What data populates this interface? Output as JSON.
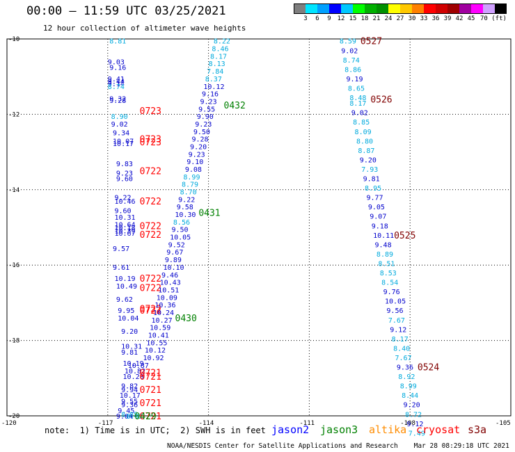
{
  "title": "00:00 – 11:59 UTC 03/25/2021",
  "subtitle": "12 hour collection of altimeter wave heights",
  "colorbar": {
    "colors": [
      "#7f7f7f",
      "#00e5ff",
      "#00a0ff",
      "#0000ff",
      "#00c8ff",
      "#00ff00",
      "#00b000",
      "#009000",
      "#ffff00",
      "#ffc800",
      "#ff8000",
      "#ff0000",
      "#d00000",
      "#a00000",
      "#a000a0",
      "#ff00ff",
      "#d0a0ff",
      "#000000"
    ],
    "labels": [
      "3",
      "6",
      "9",
      "12",
      "15",
      "18",
      "21",
      "24",
      "27",
      "30",
      "33",
      "36",
      "39",
      "42",
      "45",
      "70 (ft)"
    ],
    "unit": "(ft)"
  },
  "axes": {
    "lat_ticks": [
      "-10",
      "-12",
      "-14",
      "-16",
      "-18",
      "-20"
    ],
    "lon_ticks": [
      "-120",
      "-117",
      "-114",
      "-111",
      "-108",
      "-105"
    ]
  },
  "tracks": [
    {
      "satellite": "cryosat",
      "time_labels": [
        {
          "text": "0723",
          "lat": -11.9
        },
        {
          "text": "0723",
          "lat": -12.65
        },
        {
          "text": "0723",
          "lat": -12.73
        },
        {
          "text": "0722",
          "lat": -13.5
        },
        {
          "text": "0722",
          "lat": -14.3
        },
        {
          "text": "0722",
          "lat": -14.95
        },
        {
          "text": "0722",
          "lat": -15.18
        },
        {
          "text": "0722",
          "lat": -16.35
        },
        {
          "text": "0722",
          "lat": -16.6
        },
        {
          "text": "0722",
          "lat": -17.15
        },
        {
          "text": "0722",
          "lat": -17.2
        },
        {
          "text": "0721",
          "lat": -18.85
        },
        {
          "text": "0721",
          "lat": -18.95
        },
        {
          "text": "0721",
          "lat": -19.3
        },
        {
          "text": "0721",
          "lat": -19.65
        },
        {
          "text": "0721",
          "lat": -20.0
        }
      ],
      "points": [
        {
          "lat": -10.05,
          "value": "8.81",
          "lon": -116.95
        },
        {
          "lat": -10.6,
          "value": "9.03",
          "lon": -117.0
        },
        {
          "lat": -10.75,
          "value": "9.16",
          "lon": -116.95
        },
        {
          "lat": -11.05,
          "value": "9.41",
          "lon": -117.0
        },
        {
          "lat": -11.12,
          "value": "9.44",
          "lon": -117.0
        },
        {
          "lat": -11.18,
          "value": "9.14",
          "lon": -117.0
        },
        {
          "lat": -11.25,
          "value": "8.74",
          "lon": -117.0
        },
        {
          "lat": -11.58,
          "value": "9.32",
          "lon": -116.95
        },
        {
          "lat": -11.62,
          "value": "9.28",
          "lon": -116.95
        },
        {
          "lat": -12.05,
          "value": "8.90",
          "lon": -116.9
        },
        {
          "lat": -12.25,
          "value": "9.02",
          "lon": -116.9
        },
        {
          "lat": -12.48,
          "value": "9.34",
          "lon": -116.85
        },
        {
          "lat": -12.7,
          "value": "10.07",
          "lon": -116.85
        },
        {
          "lat": -12.77,
          "value": "10.17",
          "lon": -116.85
        },
        {
          "lat": -13.3,
          "value": "9.83",
          "lon": -116.75
        },
        {
          "lat": -13.55,
          "value": "9.23",
          "lon": -116.75
        },
        {
          "lat": -13.7,
          "value": "9.60",
          "lon": -116.75
        },
        {
          "lat": -14.2,
          "value": "9.22",
          "lon": -116.8
        },
        {
          "lat": -14.3,
          "value": "10.46",
          "lon": -116.8
        },
        {
          "lat": -14.55,
          "value": "9.60",
          "lon": -116.8
        },
        {
          "lat": -14.72,
          "value": "10.31",
          "lon": -116.8
        },
        {
          "lat": -14.92,
          "value": "10.64",
          "lon": -116.8
        },
        {
          "lat": -15.0,
          "value": "10.18",
          "lon": -116.8
        },
        {
          "lat": -15.08,
          "value": "10.39",
          "lon": -116.8
        },
        {
          "lat": -15.15,
          "value": "10.67",
          "lon": -116.8
        },
        {
          "lat": -15.55,
          "value": "9.57",
          "lon": -116.85
        },
        {
          "lat": -16.05,
          "value": "9.61",
          "lon": -116.85
        },
        {
          "lat": -16.35,
          "value": "10.19",
          "lon": -116.8
        },
        {
          "lat": -16.55,
          "value": "10.49",
          "lon": -116.75
        },
        {
          "lat": -16.9,
          "value": "9.62",
          "lon": -116.75
        },
        {
          "lat": -17.2,
          "value": "9.95",
          "lon": -116.7
        },
        {
          "lat": -17.4,
          "value": "10.04",
          "lon": -116.7
        },
        {
          "lat": -17.75,
          "value": "9.20",
          "lon": -116.6
        },
        {
          "lat": -18.15,
          "value": "10.31",
          "lon": -116.6
        },
        {
          "lat": -18.3,
          "value": "9.81",
          "lon": -116.6
        },
        {
          "lat": -18.6,
          "value": "10.19",
          "lon": -116.55
        },
        {
          "lat": -18.65,
          "value": "10.87",
          "lon": -116.4
        },
        {
          "lat": -18.8,
          "value": "10.82",
          "lon": -116.5
        },
        {
          "lat": -18.95,
          "value": "10.20",
          "lon": -116.55
        },
        {
          "lat": -19.2,
          "value": "9.82",
          "lon": -116.6
        },
        {
          "lat": -19.3,
          "value": "9.94",
          "lon": -116.6
        },
        {
          "lat": -19.45,
          "value": "10.17",
          "lon": -116.65
        },
        {
          "lat": -19.6,
          "value": "9.55",
          "lon": -116.6
        },
        {
          "lat": -19.7,
          "value": "9.36",
          "lon": -116.6
        },
        {
          "lat": -19.85,
          "value": "9.45",
          "lon": -116.7
        },
        {
          "lat": -20.0,
          "value": "9.04",
          "lon": -116.75
        },
        {
          "lat": -19.95,
          "value": "8.85",
          "lon": -116.6
        },
        {
          "lat": -20.0,
          "value": "8.92",
          "lon": -116.45
        }
      ]
    },
    {
      "satellite": "jason3",
      "time_labels": [
        {
          "text": "0432",
          "lat": -11.75
        },
        {
          "text": "0431",
          "lat": -14.6
        },
        {
          "text": "0430",
          "lat": -17.4
        },
        {
          "text": "0429",
          "lat": -20.0
        }
      ],
      "points": [
        {
          "lat": -10.05,
          "value": "8.22",
          "lon": -113.85
        },
        {
          "lat": -10.25,
          "value": "8.46",
          "lon": -113.9
        },
        {
          "lat": -10.45,
          "value": "8.17",
          "lon": -113.95
        },
        {
          "lat": -10.65,
          "value": "8.13",
          "lon": -114.0
        },
        {
          "lat": -10.85,
          "value": "7.84",
          "lon": -114.05
        },
        {
          "lat": -11.05,
          "value": "8.37",
          "lon": -114.1
        },
        {
          "lat": -11.25,
          "value": "10.12",
          "lon": -114.15
        },
        {
          "lat": -11.45,
          "value": "9.16",
          "lon": -114.2
        },
        {
          "lat": -11.65,
          "value": "9.23",
          "lon": -114.25
        },
        {
          "lat": -11.85,
          "value": "9.55",
          "lon": -114.3
        },
        {
          "lat": -12.05,
          "value": "9.90",
          "lon": -114.35
        },
        {
          "lat": -12.25,
          "value": "9.23",
          "lon": -114.4
        },
        {
          "lat": -12.45,
          "value": "9.50",
          "lon": -114.45
        },
        {
          "lat": -12.65,
          "value": "9.28",
          "lon": -114.5
        },
        {
          "lat": -12.85,
          "value": "9.20",
          "lon": -114.55
        },
        {
          "lat": -13.05,
          "value": "9.23",
          "lon": -114.6
        },
        {
          "lat": -13.25,
          "value": "9.10",
          "lon": -114.65
        },
        {
          "lat": -13.45,
          "value": "9.08",
          "lon": -114.7
        },
        {
          "lat": -13.65,
          "value": "8.99",
          "lon": -114.75
        },
        {
          "lat": -13.85,
          "value": "8.79",
          "lon": -114.8
        },
        {
          "lat": -14.05,
          "value": "8.70",
          "lon": -114.85
        },
        {
          "lat": -14.25,
          "value": "9.22",
          "lon": -114.9
        },
        {
          "lat": -14.45,
          "value": "9.58",
          "lon": -114.95
        },
        {
          "lat": -14.65,
          "value": "10.30",
          "lon": -115.0
        },
        {
          "lat": -14.85,
          "value": "8.56",
          "lon": -115.05
        },
        {
          "lat": -15.05,
          "value": "9.50",
          "lon": -115.1
        },
        {
          "lat": -15.25,
          "value": "10.05",
          "lon": -115.15
        },
        {
          "lat": -15.45,
          "value": "9.52",
          "lon": -115.2
        },
        {
          "lat": -15.65,
          "value": "9.67",
          "lon": -115.25
        },
        {
          "lat": -15.85,
          "value": "9.89",
          "lon": -115.3
        },
        {
          "lat": -16.05,
          "value": "10.10",
          "lon": -115.35
        },
        {
          "lat": -16.25,
          "value": "9.46",
          "lon": -115.4
        },
        {
          "lat": -16.45,
          "value": "10.43",
          "lon": -115.45
        },
        {
          "lat": -16.65,
          "value": "10.51",
          "lon": -115.5
        },
        {
          "lat": -16.85,
          "value": "10.09",
          "lon": -115.55
        },
        {
          "lat": -17.05,
          "value": "10.36",
          "lon": -115.6
        },
        {
          "lat": -17.25,
          "value": "10.24",
          "lon": -115.65
        },
        {
          "lat": -17.45,
          "value": "10.27",
          "lon": -115.7
        },
        {
          "lat": -17.65,
          "value": "10.59",
          "lon": -115.75
        },
        {
          "lat": -17.85,
          "value": "10.41",
          "lon": -115.8
        },
        {
          "lat": -18.05,
          "value": "10.55",
          "lon": -115.85
        },
        {
          "lat": -18.25,
          "value": "10.12",
          "lon": -115.9
        },
        {
          "lat": -18.45,
          "value": "10.92",
          "lon": -115.95
        }
      ]
    },
    {
      "satellite": "s3a",
      "time_labels": [
        {
          "text": "0527",
          "lat": -10.05
        },
        {
          "text": "0526",
          "lat": -11.6
        },
        {
          "text": "0525",
          "lat": -15.2
        },
        {
          "text": "0524",
          "lat": -18.7
        }
      ],
      "points": [
        {
          "lat": -10.05,
          "value": "8.59",
          "lon": -110.1
        },
        {
          "lat": -10.3,
          "value": "9.02",
          "lon": -110.05
        },
        {
          "lat": -10.55,
          "value": "8.74",
          "lon": -110.0
        },
        {
          "lat": -10.8,
          "value": "8.86",
          "lon": -109.95
        },
        {
          "lat": -11.05,
          "value": "9.19",
          "lon": -109.9
        },
        {
          "lat": -11.3,
          "value": "8.65",
          "lon": -109.85
        },
        {
          "lat": -11.55,
          "value": "8.48",
          "lon": -109.8
        },
        {
          "lat": -11.7,
          "value": "8.17",
          "lon": -109.8
        },
        {
          "lat": -11.95,
          "value": "9.02",
          "lon": -109.75
        },
        {
          "lat": -12.2,
          "value": "8.85",
          "lon": -109.7
        },
        {
          "lat": -12.45,
          "value": "8.09",
          "lon": -109.65
        },
        {
          "lat": -12.7,
          "value": "8.80",
          "lon": -109.6
        },
        {
          "lat": -12.95,
          "value": "8.87",
          "lon": -109.55
        },
        {
          "lat": -13.2,
          "value": "9.20",
          "lon": -109.5
        },
        {
          "lat": -13.45,
          "value": "7.93",
          "lon": -109.45
        },
        {
          "lat": -13.7,
          "value": "9.81",
          "lon": -109.4
        },
        {
          "lat": -13.95,
          "value": "8.95",
          "lon": -109.35
        },
        {
          "lat": -14.2,
          "value": "9.77",
          "lon": -109.3
        },
        {
          "lat": -14.45,
          "value": "9.05",
          "lon": -109.25
        },
        {
          "lat": -14.7,
          "value": "9.07",
          "lon": -109.2
        },
        {
          "lat": -14.95,
          "value": "9.18",
          "lon": -109.15
        },
        {
          "lat": -15.2,
          "value": "10.11",
          "lon": -109.1
        },
        {
          "lat": -15.45,
          "value": "9.48",
          "lon": -109.05
        },
        {
          "lat": -15.7,
          "value": "8.89",
          "lon": -109.0
        },
        {
          "lat": -15.95,
          "value": "8.51",
          "lon": -108.95
        },
        {
          "lat": -16.2,
          "value": "8.53",
          "lon": -108.9
        },
        {
          "lat": -16.45,
          "value": "8.54",
          "lon": -108.85
        },
        {
          "lat": -16.7,
          "value": "9.76",
          "lon": -108.8
        },
        {
          "lat": -16.95,
          "value": "10.05",
          "lon": -108.75
        },
        {
          "lat": -17.2,
          "value": "9.56",
          "lon": -108.7
        },
        {
          "lat": -17.45,
          "value": "7.67",
          "lon": -108.65
        },
        {
          "lat": -17.7,
          "value": "9.12",
          "lon": -108.6
        },
        {
          "lat": -17.95,
          "value": "8.17",
          "lon": -108.55
        },
        {
          "lat": -18.2,
          "value": "8.40",
          "lon": -108.5
        },
        {
          "lat": -18.45,
          "value": "7.67",
          "lon": -108.45
        },
        {
          "lat": -18.7,
          "value": "9.36",
          "lon": -108.4
        },
        {
          "lat": -18.95,
          "value": "8.92",
          "lon": -108.35
        },
        {
          "lat": -19.2,
          "value": "8.99",
          "lon": -108.3
        },
        {
          "lat": -19.45,
          "value": "8.44",
          "lon": -108.25
        },
        {
          "lat": -19.7,
          "value": "9.20",
          "lon": -108.2
        },
        {
          "lat": -19.95,
          "value": "8.72",
          "lon": -108.15
        },
        {
          "lat": -20.2,
          "value": "9.12",
          "lon": -108.1
        },
        {
          "lat": -20.45,
          "value": "7.49",
          "lon": -108.05
        }
      ]
    }
  ],
  "footer": {
    "note": "note:  1) Time is in UTC;  2) SWH is in feet",
    "satellites": [
      {
        "name": "jason2",
        "color": "#0000ff"
      },
      {
        "name": "jason3",
        "color": "#008000"
      },
      {
        "name": "altika",
        "color": "#ff8c00"
      },
      {
        "name": "cryosat",
        "color": "#ff0000"
      },
      {
        "name": "s3a",
        "color": "#800000"
      }
    ],
    "credit": "NOAA/NESDIS Center for Satellite Applications and Research    Mar 28 08:29:18 UTC 2021"
  }
}
